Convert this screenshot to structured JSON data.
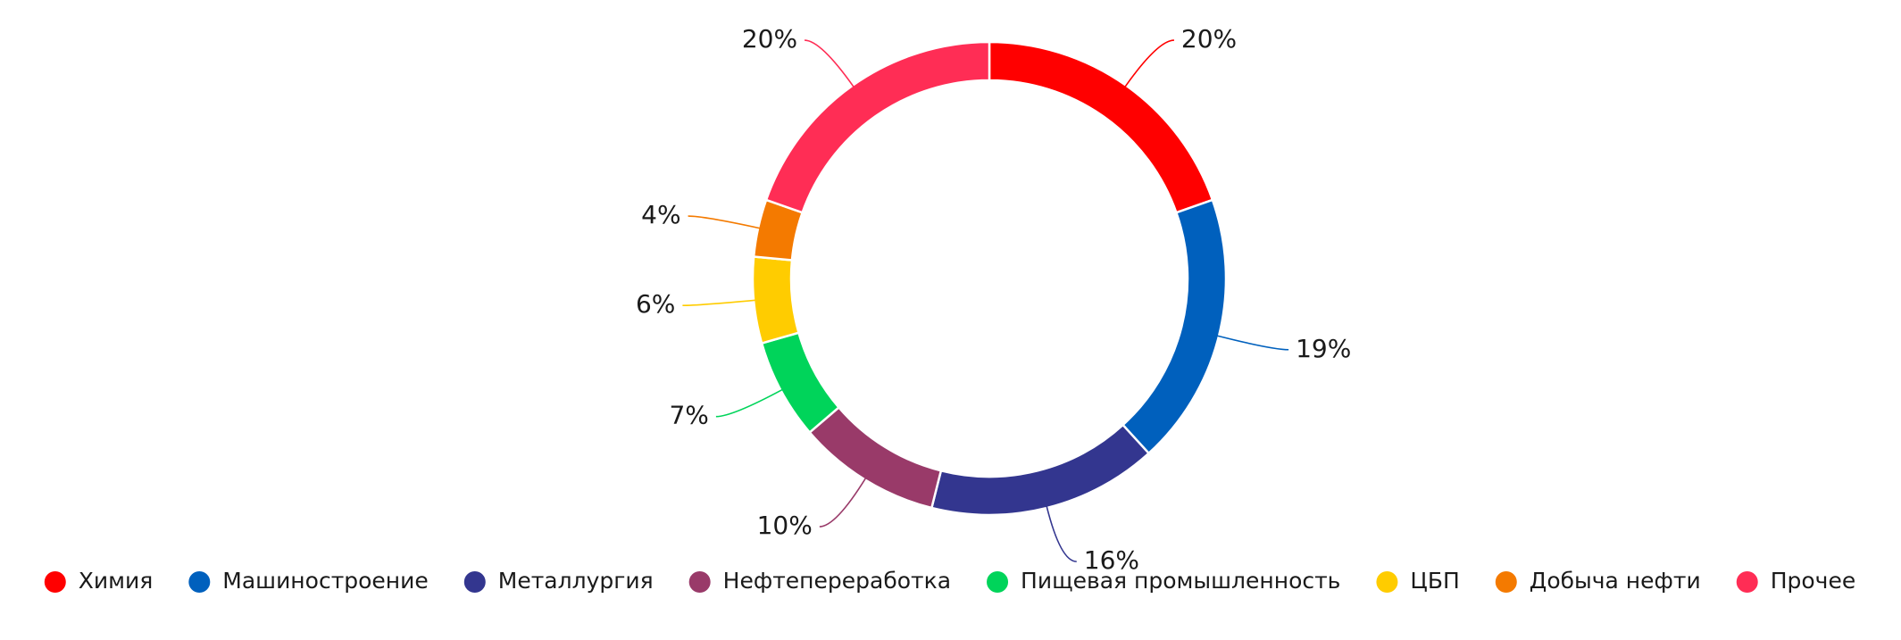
{
  "chart_data": {
    "type": "donut",
    "categories": [
      "Химия",
      "Машиностроение",
      "Металлургия",
      "Нефтепереработка",
      "Пищевая промышленность",
      "ЦБП",
      "Добыча нефти",
      "Прочее"
    ],
    "values": [
      20,
      19,
      16,
      10,
      7,
      6,
      4,
      20
    ],
    "labels": [
      "20%",
      "19%",
      "16%",
      "10%",
      "7%",
      "6%",
      "4%",
      "20%"
    ],
    "colors": [
      "#ff0000",
      "#0060bd",
      "#33368f",
      "#993a69",
      "#00d45a",
      "#ffcc00",
      "#f47a00",
      "#ff2d55"
    ],
    "legend_position": "bottom",
    "unit": "%"
  }
}
